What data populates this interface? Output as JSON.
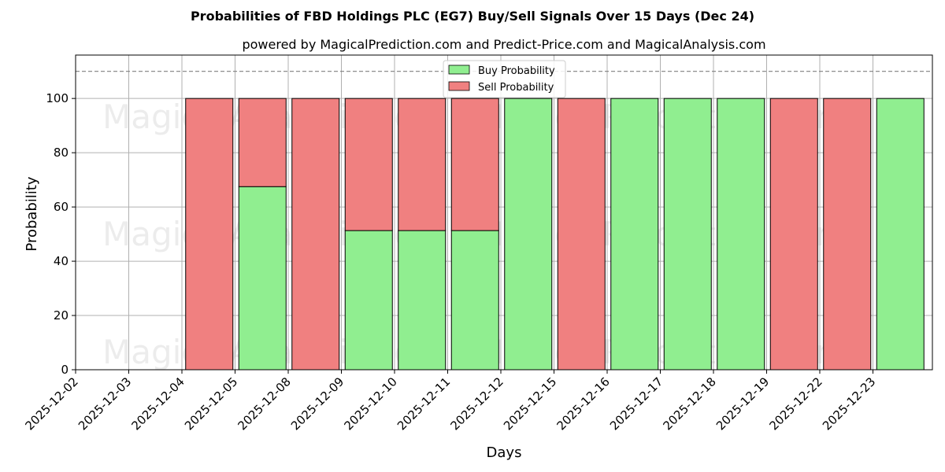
{
  "chart_data": {
    "type": "bar",
    "stacked": true,
    "title": "Probabilities of FBD Holdings PLC (EG7) Buy/Sell Signals Over 15 Days (Dec 24)",
    "subtitle": "powered by MagicalPrediction.com and Predict-Price.com and MagicalAnalysis.com",
    "xlabel": "Days",
    "ylabel": "Probability",
    "ylim": [
      0,
      116
    ],
    "yticks": [
      0,
      20,
      40,
      60,
      80,
      100
    ],
    "reference_line": 110,
    "grid": true,
    "legend_position": "top-center",
    "categories": [
      "2025-12-02",
      "2025-12-03",
      "2025-12-04",
      "2025-12-05",
      "2025-12-08",
      "2025-12-09",
      "2025-12-10",
      "2025-12-11",
      "2025-12-12",
      "2025-12-15",
      "2025-12-16",
      "2025-12-17",
      "2025-12-18",
      "2025-12-19",
      "2025-12-22",
      "2025-12-23"
    ],
    "bars": [
      {
        "date": "2025-12-04",
        "buy": 0,
        "sell": 100
      },
      {
        "date": "2025-12-05",
        "buy": 67.5,
        "sell": 32.5
      },
      {
        "date": "2025-12-08",
        "buy": 0,
        "sell": 100
      },
      {
        "date": "2025-12-09",
        "buy": 51.3,
        "sell": 48.7
      },
      {
        "date": "2025-12-10",
        "buy": 51.3,
        "sell": 48.7
      },
      {
        "date": "2025-12-11",
        "buy": 51.3,
        "sell": 48.7
      },
      {
        "date": "2025-12-12",
        "buy": 100,
        "sell": 0
      },
      {
        "date": "2025-12-15",
        "buy": 0,
        "sell": 100
      },
      {
        "date": "2025-12-16",
        "buy": 100,
        "sell": 0
      },
      {
        "date": "2025-12-17",
        "buy": 100,
        "sell": 0
      },
      {
        "date": "2025-12-18",
        "buy": 100,
        "sell": 0
      },
      {
        "date": "2025-12-19",
        "buy": 0,
        "sell": 100
      },
      {
        "date": "2025-12-22",
        "buy": 0,
        "sell": 100
      },
      {
        "date": "2025-12-23",
        "buy": 100,
        "sell": 0
      }
    ],
    "series": [
      {
        "name": "Buy Probability",
        "color": "#90ee90"
      },
      {
        "name": "Sell Probability",
        "color": "#f08080"
      }
    ],
    "watermarks": [
      "MagicalAnalysis.com",
      "MagicalPrediction.com"
    ]
  }
}
